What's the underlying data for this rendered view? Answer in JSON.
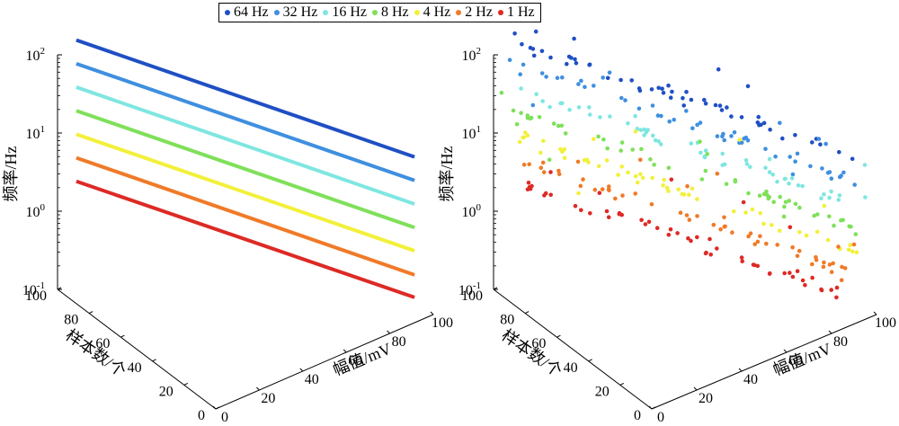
{
  "legend": [
    {
      "label": "64 Hz",
      "color": "#1f4fc4"
    },
    {
      "label": "32 Hz",
      "color": "#3f8fe0"
    },
    {
      "label": "16 Hz",
      "color": "#7fe6e0"
    },
    {
      "label": "8 Hz",
      "color": "#7fe05a"
    },
    {
      "label": "4 Hz",
      "color": "#f2f03a"
    },
    {
      "label": "2 Hz",
      "color": "#f07a28"
    },
    {
      "label": "1 Hz",
      "color": "#dd2a25"
    }
  ],
  "chart_data": [
    {
      "type": "line",
      "projection": "3d",
      "zlabel": "频率/Hz",
      "xlabel": "幅值/mV",
      "ylabel": "样本数/个",
      "zscale": "log",
      "zlim": [
        0.1,
        100
      ],
      "xlim": [
        0,
        100
      ],
      "ylim": [
        0,
        100
      ],
      "xticks": [
        "0",
        "20",
        "40",
        "60",
        "80",
        "100"
      ],
      "yticks": [
        "0",
        "20",
        "40",
        "60",
        "80",
        "100"
      ],
      "zticks": [
        {
          "base": "10",
          "exp": "-1"
        },
        {
          "base": "10",
          "exp": "0"
        },
        {
          "base": "10",
          "exp": "1"
        },
        {
          "base": "10",
          "exp": "2"
        }
      ],
      "series": [
        {
          "name": "64 Hz",
          "start": [
            5,
            95,
            160
          ],
          "end": [
            95,
            5,
            10
          ]
        },
        {
          "name": "32 Hz",
          "start": [
            5,
            95,
            80
          ],
          "end": [
            95,
            5,
            5
          ]
        },
        {
          "name": "16 Hz",
          "start": [
            5,
            95,
            40
          ],
          "end": [
            95,
            5,
            2.5
          ]
        },
        {
          "name": "8 Hz",
          "start": [
            5,
            95,
            20
          ],
          "end": [
            95,
            5,
            1.25
          ]
        },
        {
          "name": "4 Hz",
          "start": [
            5,
            95,
            10
          ],
          "end": [
            95,
            5,
            0.63
          ]
        },
        {
          "name": "2 Hz",
          "start": [
            5,
            95,
            5
          ],
          "end": [
            95,
            5,
            0.31
          ]
        },
        {
          "name": "1 Hz",
          "start": [
            5,
            95,
            2.5
          ],
          "end": [
            95,
            5,
            0.16
          ]
        }
      ]
    },
    {
      "type": "scatter",
      "projection": "3d",
      "zlabel": "频率/Hz",
      "xlabel": "幅值/mV",
      "ylabel": "样本数/个",
      "zscale": "log",
      "zlim": [
        0.1,
        100
      ],
      "xlim": [
        0,
        100
      ],
      "ylim": [
        0,
        100
      ],
      "xticks": [
        "0",
        "20",
        "40",
        "60",
        "80",
        "100"
      ],
      "yticks": [
        "0",
        "20",
        "40",
        "60",
        "80",
        "100"
      ],
      "zticks": [
        {
          "base": "10",
          "exp": "-1"
        },
        {
          "base": "10",
          "exp": "0"
        },
        {
          "base": "10",
          "exp": "1"
        },
        {
          "base": "10",
          "exp": "2"
        }
      ],
      "series": [
        {
          "name": "64 Hz",
          "trend_start": [
            5,
            95,
            160
          ],
          "trend_end": [
            95,
            5,
            10
          ],
          "points": 55
        },
        {
          "name": "32 Hz",
          "trend_start": [
            5,
            95,
            80
          ],
          "trend_end": [
            95,
            5,
            5
          ],
          "points": 55
        },
        {
          "name": "16 Hz",
          "trend_start": [
            5,
            95,
            40
          ],
          "trend_end": [
            95,
            5,
            2.5
          ],
          "points": 55
        },
        {
          "name": "8 Hz",
          "trend_start": [
            5,
            95,
            20
          ],
          "trend_end": [
            95,
            5,
            1.25
          ],
          "points": 55
        },
        {
          "name": "4 Hz",
          "trend_start": [
            5,
            95,
            10
          ],
          "trend_end": [
            95,
            5,
            0.63
          ],
          "points": 55
        },
        {
          "name": "2 Hz",
          "trend_start": [
            5,
            95,
            5
          ],
          "trend_end": [
            95,
            5,
            0.31
          ],
          "points": 55
        },
        {
          "name": "1 Hz",
          "trend_start": [
            5,
            95,
            2.5
          ],
          "trend_end": [
            95,
            5,
            0.16
          ],
          "points": 55
        }
      ]
    }
  ]
}
